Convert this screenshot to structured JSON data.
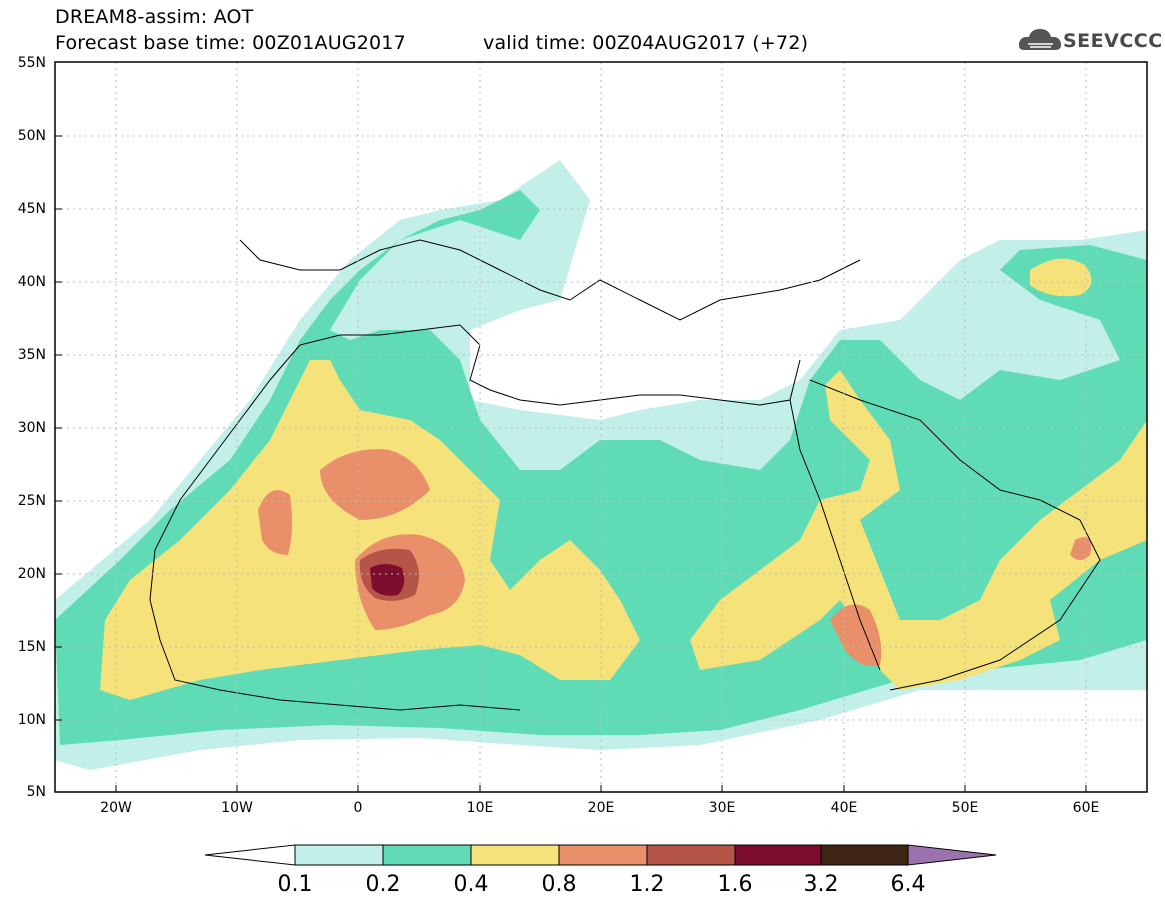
{
  "header": {
    "title": "DREAM8-assim: AOT",
    "base_time": "Forecast base time: 00Z01AUG2017",
    "valid_time": "valid time: 00Z04AUG2017 (+72)",
    "logo_text": "SEEVCCC"
  },
  "map": {
    "lat_labels": [
      "55N",
      "50N",
      "45N",
      "40N",
      "35N",
      "30N",
      "25N",
      "20N",
      "15N",
      "10N",
      "5N"
    ],
    "lon_labels": [
      "20W",
      "10W",
      "0",
      "10E",
      "20E",
      "30E",
      "40E",
      "50E",
      "60E"
    ]
  },
  "colorbar": {
    "levels": [
      "0.1",
      "0.2",
      "0.4",
      "0.8",
      "1.2",
      "1.6",
      "3.2",
      "6.4"
    ],
    "colors": [
      "#c2efe7",
      "#5fdcb6",
      "#f5e27a",
      "#e98f6a",
      "#b45548",
      "#7d0d2d",
      "#3d2414",
      "#9a72ad"
    ]
  }
}
